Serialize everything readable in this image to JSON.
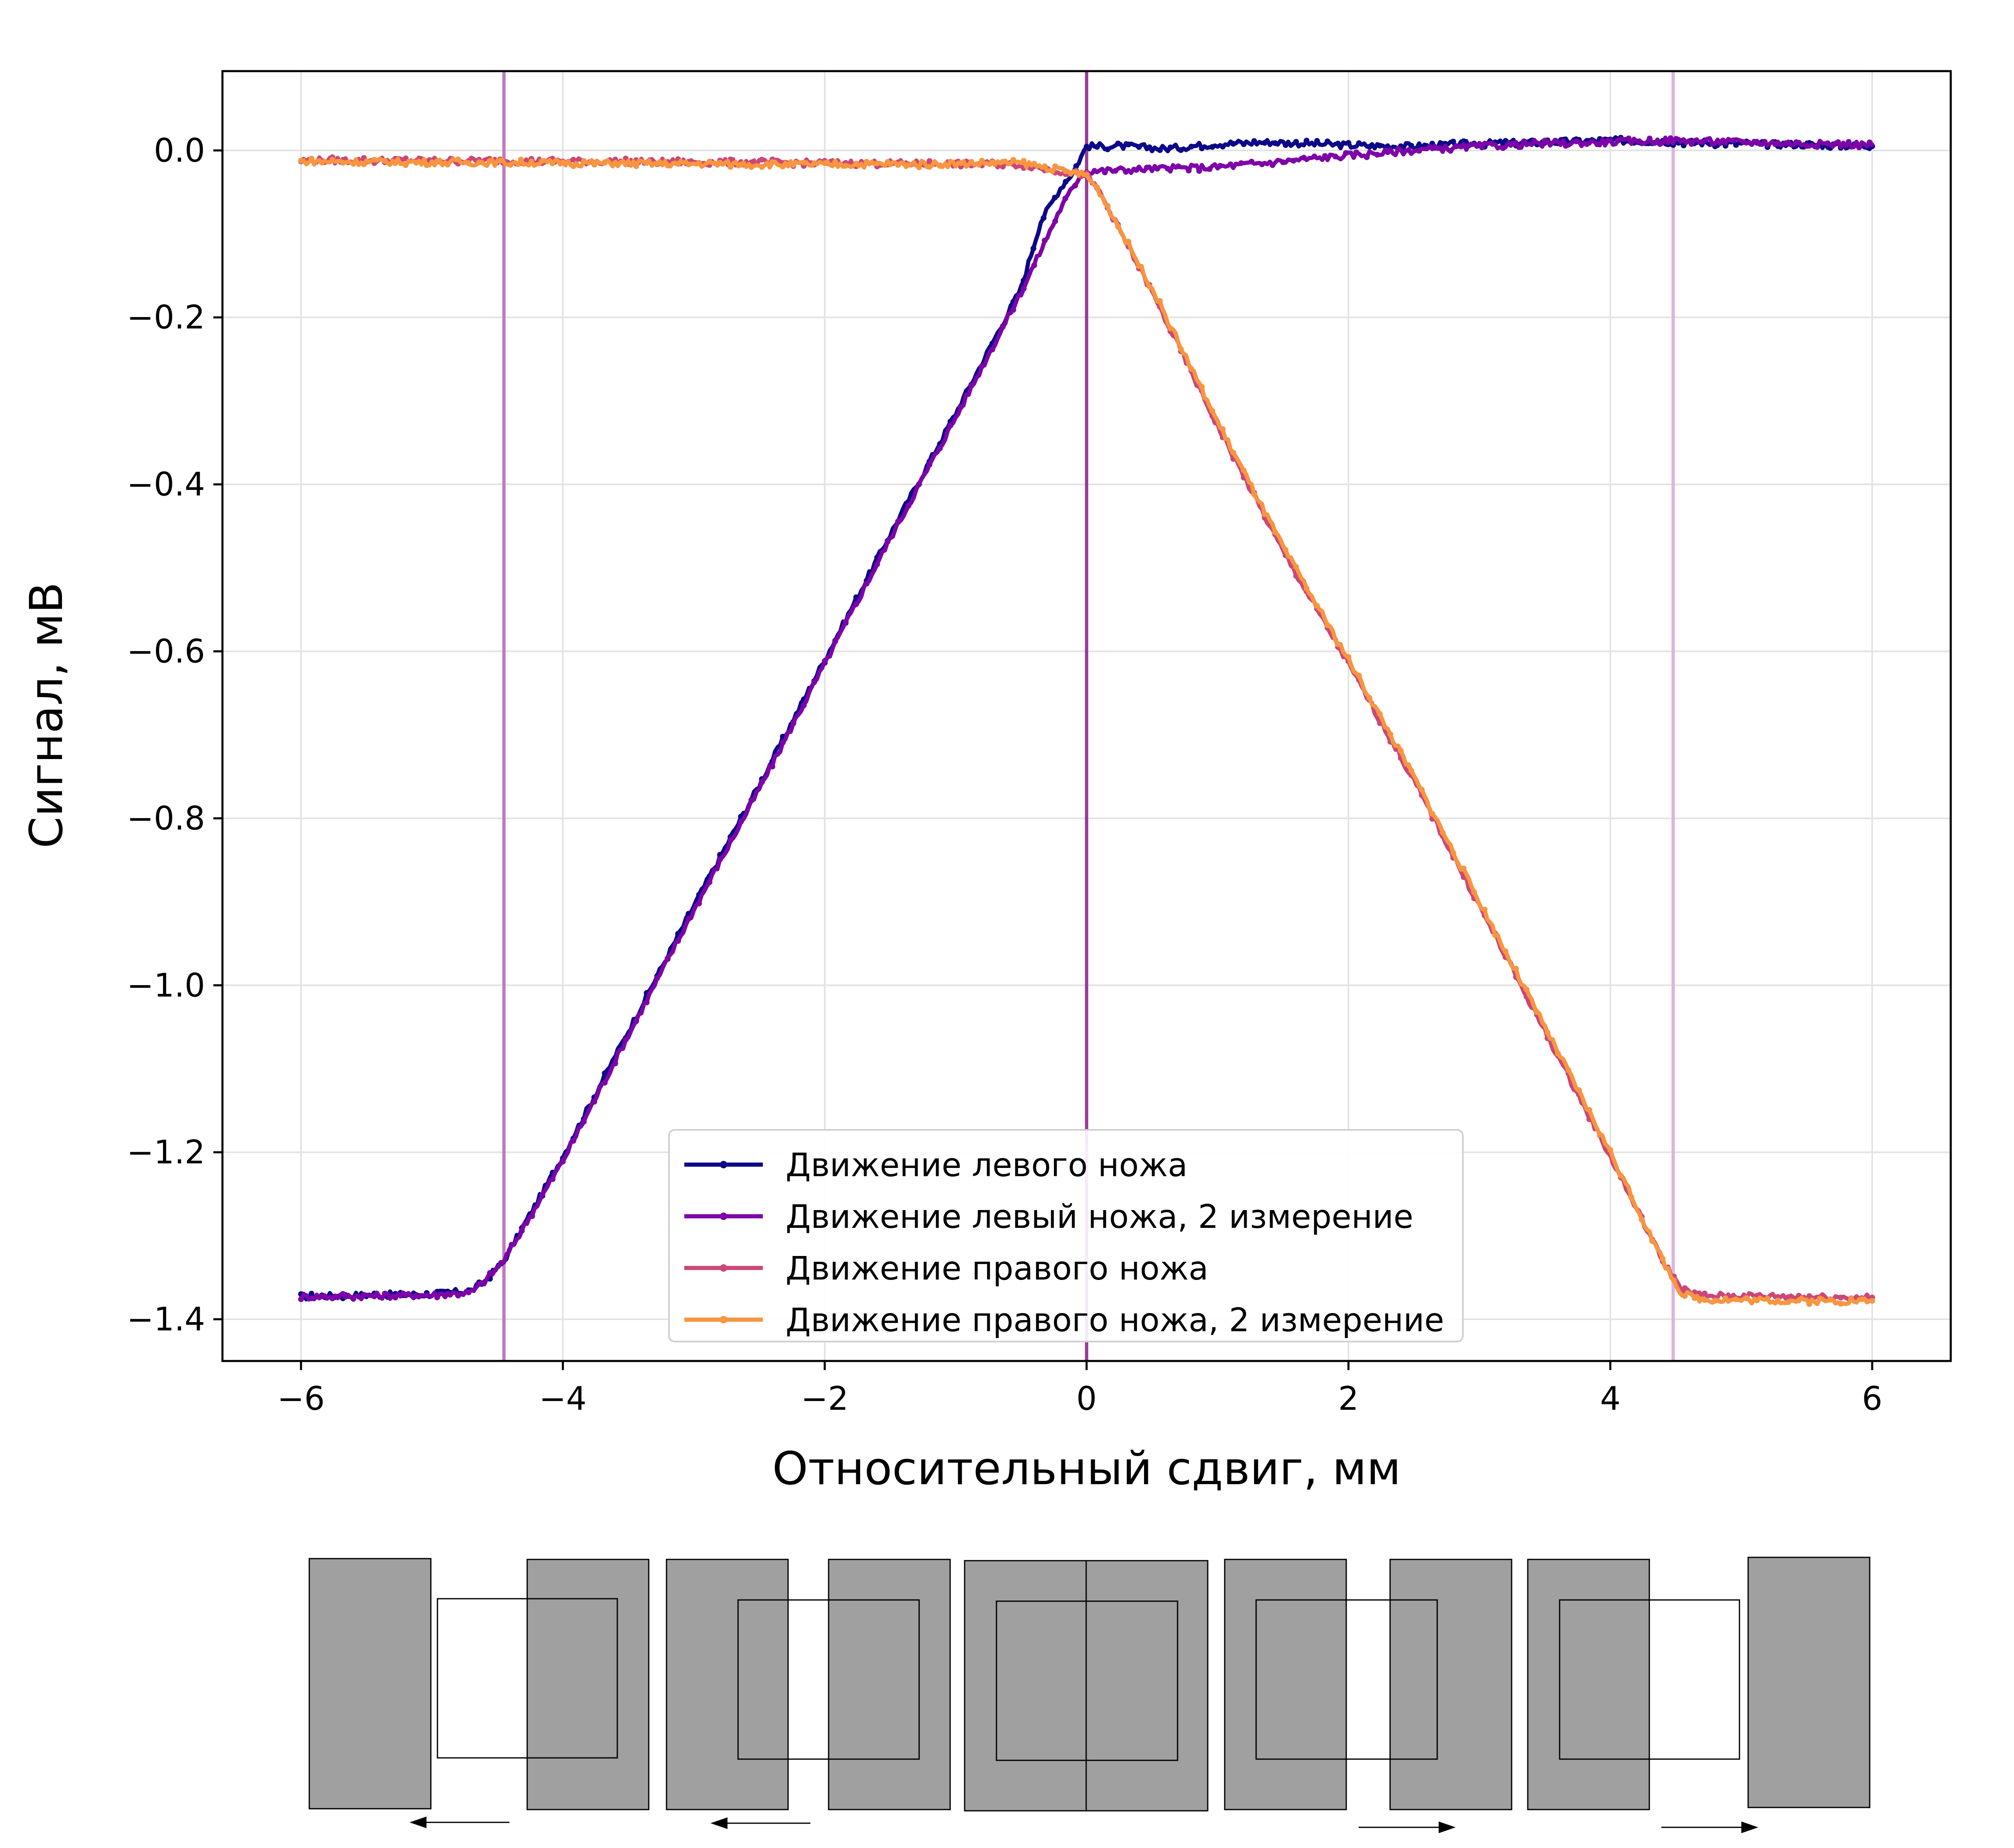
{
  "chart_data": {
    "type": "line",
    "title": "",
    "xlabel": "Относительный сдвиг, мм",
    "ylabel": "Сигнал, мВ",
    "xlim": [
      -6.6,
      6.6
    ],
    "ylim": [
      -1.45,
      0.095
    ],
    "xticks": [
      -6,
      -4,
      -2,
      0,
      2,
      4,
      6
    ],
    "xtick_labels": [
      "−6",
      "−4",
      "−2",
      "0",
      "2",
      "4",
      "6"
    ],
    "yticks": [
      0.0,
      -0.2,
      -0.4,
      -0.6,
      -0.8,
      -1.0,
      -1.2,
      -1.4
    ],
    "ytick_labels": [
      "0.0",
      "−0.2",
      "−0.4",
      "−0.6",
      "−0.8",
      "−1.0",
      "−1.2",
      "−1.4"
    ],
    "grid": true,
    "legend_position": "lower center",
    "vlines": [
      {
        "x": -4.45,
        "color": "#c07ac0"
      },
      {
        "x": 0.0,
        "color": "#9a3d9a"
      },
      {
        "x": 4.48,
        "color": "#dcb4e0"
      }
    ],
    "series": [
      {
        "name": "Движение левого ножа",
        "color": "#0d0887",
        "points": [
          [
            -6.0,
            -1.373
          ],
          [
            -5.5,
            -1.371
          ],
          [
            -5.0,
            -1.37
          ],
          [
            -4.7,
            -1.366
          ],
          [
            -4.6,
            -1.355
          ],
          [
            -4.45,
            -1.33
          ],
          [
            -4.0,
            -1.205
          ],
          [
            -3.5,
            -1.055
          ],
          [
            -3.0,
            -0.905
          ],
          [
            -2.5,
            -0.76
          ],
          [
            -2.0,
            -0.61
          ],
          [
            -1.5,
            -0.46
          ],
          [
            -1.0,
            -0.315
          ],
          [
            -0.5,
            -0.165
          ],
          [
            -0.35,
            -0.085
          ],
          [
            -0.2,
            -0.045
          ],
          [
            -0.1,
            -0.025
          ],
          [
            0.0,
            0.005
          ],
          [
            0.3,
            0.005
          ],
          [
            0.6,
            0.002
          ],
          [
            1.0,
            0.008
          ],
          [
            1.4,
            0.01
          ],
          [
            2.0,
            0.006
          ],
          [
            2.5,
            0.005
          ],
          [
            3.0,
            0.008
          ],
          [
            3.5,
            0.01
          ],
          [
            4.0,
            0.012
          ],
          [
            4.5,
            0.01
          ],
          [
            5.0,
            0.008
          ],
          [
            5.5,
            0.007
          ],
          [
            6.0,
            0.005
          ]
        ]
      },
      {
        "name": "Движение левый ножа, 2 измерение",
        "color": "#7e03a8",
        "points": [
          [
            -6.0,
            -1.373
          ],
          [
            -5.5,
            -1.372
          ],
          [
            -5.0,
            -1.371
          ],
          [
            -4.7,
            -1.368
          ],
          [
            -4.6,
            -1.355
          ],
          [
            -4.45,
            -1.33
          ],
          [
            -4.0,
            -1.21
          ],
          [
            -3.5,
            -1.06
          ],
          [
            -3.0,
            -0.91
          ],
          [
            -2.5,
            -0.765
          ],
          [
            -2.0,
            -0.615
          ],
          [
            -1.5,
            -0.465
          ],
          [
            -1.0,
            -0.32
          ],
          [
            -0.5,
            -0.17
          ],
          [
            -0.2,
            -0.07
          ],
          [
            -0.05,
            -0.03
          ],
          [
            0.0,
            -0.025
          ],
          [
            0.5,
            -0.022
          ],
          [
            1.0,
            -0.02
          ],
          [
            1.5,
            -0.013
          ],
          [
            2.0,
            -0.006
          ],
          [
            2.5,
            0.0
          ],
          [
            3.0,
            0.005
          ],
          [
            3.5,
            0.008
          ],
          [
            4.0,
            0.01
          ],
          [
            4.5,
            0.012
          ],
          [
            5.0,
            0.01
          ],
          [
            5.5,
            0.008
          ],
          [
            6.0,
            0.007
          ]
        ]
      },
      {
        "name": "Движение правого ножа",
        "color": "#cc4778",
        "points": [
          [
            -6.0,
            -0.012
          ],
          [
            -5.0,
            -0.012
          ],
          [
            -4.0,
            -0.013
          ],
          [
            -3.0,
            -0.014
          ],
          [
            -2.0,
            -0.015
          ],
          [
            -1.0,
            -0.016
          ],
          [
            -0.5,
            -0.017
          ],
          [
            0.0,
            -0.03
          ],
          [
            0.1,
            -0.05
          ],
          [
            0.5,
            -0.17
          ],
          [
            1.0,
            -0.33
          ],
          [
            1.5,
            -0.48
          ],
          [
            2.0,
            -0.615
          ],
          [
            2.5,
            -0.755
          ],
          [
            3.0,
            -0.905
          ],
          [
            3.5,
            -1.055
          ],
          [
            4.0,
            -1.205
          ],
          [
            4.4,
            -1.33
          ],
          [
            4.55,
            -1.365
          ],
          [
            4.7,
            -1.372
          ],
          [
            5.0,
            -1.372
          ],
          [
            5.5,
            -1.373
          ],
          [
            6.0,
            -1.374
          ]
        ]
      },
      {
        "name": "Движение правого ножа, 2 измерение",
        "color": "#f89540",
        "points": [
          [
            -6.0,
            -0.013
          ],
          [
            -5.0,
            -0.014
          ],
          [
            -4.0,
            -0.015
          ],
          [
            -3.0,
            -0.016
          ],
          [
            -2.0,
            -0.017
          ],
          [
            -1.0,
            -0.016
          ],
          [
            -0.5,
            -0.015
          ],
          [
            0.0,
            -0.03
          ],
          [
            0.1,
            -0.05
          ],
          [
            0.5,
            -0.165
          ],
          [
            1.0,
            -0.325
          ],
          [
            1.5,
            -0.475
          ],
          [
            2.0,
            -0.61
          ],
          [
            2.5,
            -0.75
          ],
          [
            3.0,
            -0.9
          ],
          [
            3.5,
            -1.05
          ],
          [
            4.0,
            -1.2
          ],
          [
            4.4,
            -1.33
          ],
          [
            4.55,
            -1.37
          ],
          [
            4.7,
            -1.376
          ],
          [
            5.0,
            -1.377
          ],
          [
            5.5,
            -1.378
          ],
          [
            6.0,
            -1.378
          ]
        ]
      }
    ]
  }
}
